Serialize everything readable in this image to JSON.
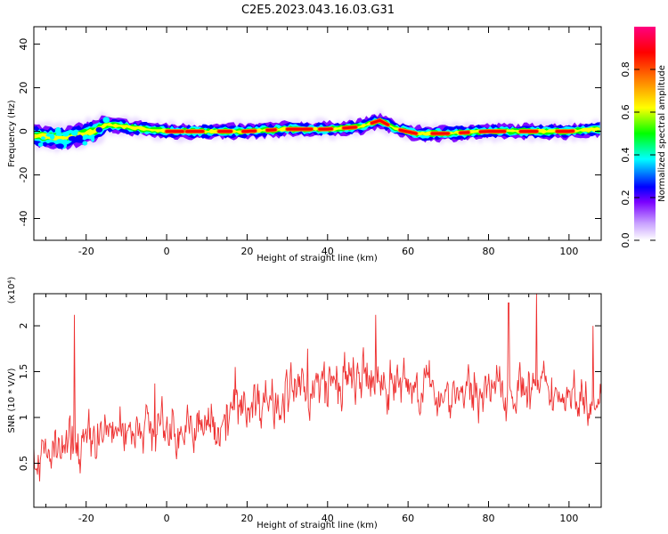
{
  "title": "C2E5.2023.043.16.03.G31",
  "chart_data": [
    {
      "type": "heatmap",
      "xlabel": "Height of straight line (km)",
      "ylabel": "Frequency (Hz)",
      "xlim": [
        -33,
        108
      ],
      "ylim": [
        -50,
        48
      ],
      "xticks": [
        -20,
        0,
        20,
        40,
        60,
        80,
        100
      ],
      "yticks": [
        -40,
        -20,
        0,
        20,
        40
      ],
      "colorbar": {
        "label": "Normalized spectral amplitude",
        "range": [
          0.0,
          1.0
        ],
        "ticks": [
          "0.0",
          "0.2",
          "0.4",
          "0.6",
          "0.8"
        ],
        "colors": [
          "#ffffff",
          "#7a00ff",
          "#0000ff",
          "#00ffff",
          "#00ff00",
          "#ffff00",
          "#ff8000",
          "#ff0000",
          "#ff0080"
        ]
      },
      "ridge_center_hz": [
        [
          -33,
          -2
        ],
        [
          -25,
          -3
        ],
        [
          -18,
          0
        ],
        [
          -15,
          3
        ],
        [
          -10,
          2
        ],
        [
          -5,
          1
        ],
        [
          0,
          0
        ],
        [
          10,
          0
        ],
        [
          20,
          0
        ],
        [
          30,
          1
        ],
        [
          40,
          1
        ],
        [
          48,
          2
        ],
        [
          53,
          5
        ],
        [
          57,
          1
        ],
        [
          62,
          -1
        ],
        [
          70,
          -1
        ],
        [
          80,
          0
        ],
        [
          90,
          0
        ],
        [
          100,
          0
        ],
        [
          108,
          1
        ]
      ],
      "ridge_halfwidth_hz": 4
    },
    {
      "type": "line",
      "xlabel": "Height of straight line (km)",
      "ylabel": "SNR (10 * V/V)",
      "y_multiplier_label": "(x10⁴)",
      "xlim": [
        -33,
        108
      ],
      "ylim": [
        0.02,
        2.35
      ],
      "xticks": [
        -20,
        0,
        20,
        40,
        60,
        80,
        100
      ],
      "yticks": [
        0.5,
        1.0,
        1.5,
        2.0
      ],
      "series_color": "#ee3030",
      "trend": [
        [
          -33,
          0.55
        ],
        [
          -25,
          0.65
        ],
        [
          -15,
          0.85
        ],
        [
          -5,
          0.9
        ],
        [
          5,
          0.85
        ],
        [
          12,
          0.95
        ],
        [
          20,
          1.15
        ],
        [
          30,
          1.25
        ],
        [
          40,
          1.35
        ],
        [
          50,
          1.4
        ],
        [
          60,
          1.35
        ],
        [
          70,
          1.25
        ],
        [
          80,
          1.3
        ],
        [
          90,
          1.3
        ],
        [
          100,
          1.25
        ],
        [
          108,
          1.25
        ]
      ],
      "peaks": [
        [
          -23,
          2.12
        ],
        [
          -3,
          1.37
        ],
        [
          17,
          1.55
        ],
        [
          35,
          1.75
        ],
        [
          52,
          2.12
        ],
        [
          85,
          2.25
        ],
        [
          92,
          2.35
        ],
        [
          106,
          2.0
        ]
      ]
    }
  ]
}
